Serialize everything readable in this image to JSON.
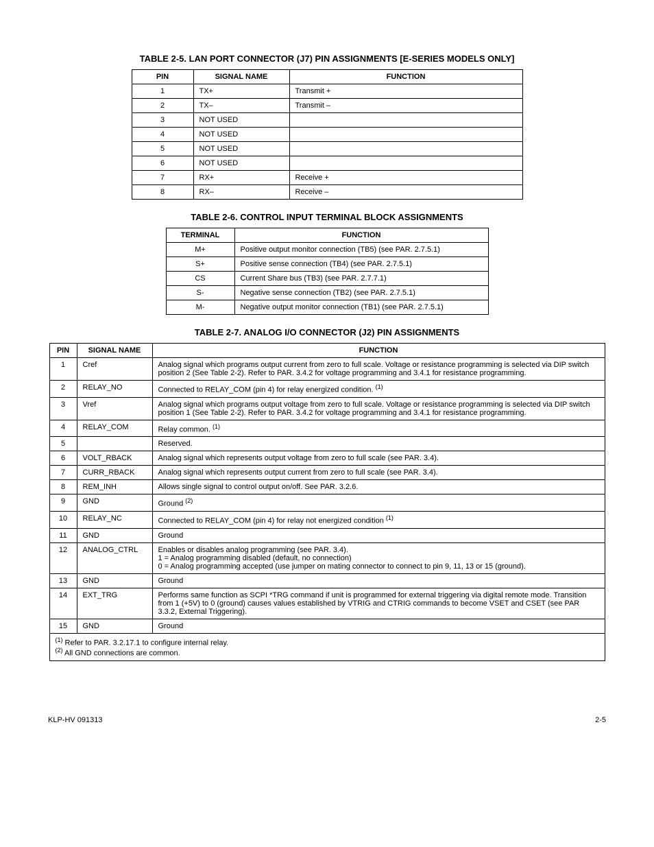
{
  "table25": {
    "title": "TABLE 2-5.  LAN PORT CONNECTOR (J7) PIN ASSIGNMENTS [E-SERIES MODELS ONLY]",
    "headers": {
      "pin": "PIN",
      "signal": "SIGNAL NAME",
      "function": "FUNCTION"
    },
    "rows": [
      {
        "pin": "1",
        "signal": "TX+",
        "function": "Transmit +"
      },
      {
        "pin": "2",
        "signal": "TX–",
        "function": "Transmit –"
      },
      {
        "pin": "3",
        "signal": "NOT USED",
        "function": ""
      },
      {
        "pin": "4",
        "signal": "NOT USED",
        "function": ""
      },
      {
        "pin": "5",
        "signal": "NOT USED",
        "function": ""
      },
      {
        "pin": "6",
        "signal": "NOT USED",
        "function": ""
      },
      {
        "pin": "7",
        "signal": "RX+",
        "function": "Receive +"
      },
      {
        "pin": "8",
        "signal": "RX–",
        "function": "Receive –"
      }
    ]
  },
  "table26": {
    "title": "TABLE 2-6.  CONTROL INPUT TERMINAL BLOCK ASSIGNMENTS",
    "headers": {
      "terminal": "TERMINAL",
      "function": "FUNCTION"
    },
    "rows": [
      {
        "terminal": "M+",
        "function": "Positive output monitor connection (TB5) (see PAR. 2.7.5.1)"
      },
      {
        "terminal": "S+",
        "function": "Positive sense connection (TB4) (see PAR. 2.7.5.1)"
      },
      {
        "terminal": "CS",
        "function": "Current Share bus (TB3) (see PAR. 2.7.7.1)"
      },
      {
        "terminal": "S-",
        "function": "Negative sense connection (TB2) (see PAR. 2.7.5.1)"
      },
      {
        "terminal": "M-",
        "function": "Negative output monitor connection (TB1) (see PAR. 2.7.5.1)"
      }
    ]
  },
  "table27": {
    "title": "TABLE 2-7.  ANALOG I/O CONNECTOR (J2) PIN ASSIGNMENTS",
    "headers": {
      "pin": "PIN",
      "signal": "SIGNAL NAME",
      "function": "FUNCTION"
    },
    "rows": [
      {
        "pin": "1",
        "signal": "Cref",
        "function": "Analog signal which programs output current from zero to full scale. Voltage or resistance programming is selected via DIP switch position 2 (See Table 2-2). Refer to PAR. 3.4.2 for voltage programming and 3.4.1 for resistance programming.",
        "sup": ""
      },
      {
        "pin": "2",
        "signal": "RELAY_NO",
        "function": "Connected to RELAY_COM (pin 4) for relay energized condition.",
        "sup": "(1)"
      },
      {
        "pin": "3",
        "signal": "Vref",
        "function": "Analog signal which programs output voltage from zero to full scale. Voltage or resistance programming is selected via DIP switch position 1 (See Table 2-2). Refer to PAR. 3.4.2 for voltage programming and 3.4.1 for resistance programming.",
        "sup": ""
      },
      {
        "pin": "4",
        "signal": "RELAY_COM",
        "function": "Relay common.",
        "sup": "(1)"
      },
      {
        "pin": "5",
        "signal": "",
        "function": "Reserved.",
        "sup": ""
      },
      {
        "pin": "6",
        "signal": "VOLT_RBACK",
        "function": "Analog signal which represents output voltage from zero to full scale (see PAR. 3.4).",
        "sup": ""
      },
      {
        "pin": "7",
        "signal": "CURR_RBACK",
        "function": "Analog signal which represents output current from zero to full scale (see PAR. 3.4).",
        "sup": ""
      },
      {
        "pin": "8",
        "signal": "REM_INH",
        "function": "Allows single signal to control output on/off. See PAR. 3.2.6.",
        "sup": ""
      },
      {
        "pin": "9",
        "signal": "GND",
        "function": "Ground",
        "sup": "(2)"
      },
      {
        "pin": "10",
        "signal": "RELAY_NC",
        "function": "Connected to RELAY_COM (pin 4) for relay not energized condition",
        "sup": "(1)"
      },
      {
        "pin": "11",
        "signal": "GND",
        "function": "Ground",
        "sup": ""
      },
      {
        "pin": "12",
        "signal": "ANALOG_CTRL",
        "function": "Enables or disables analog programming (see PAR. 3.4).\n1 = Analog programming disabled (default, no connection)\n0 = Analog programming accepted (use jumper on mating connector to connect to pin 9, 11, 13 or 15 (ground).",
        "sup": ""
      },
      {
        "pin": "13",
        "signal": "GND",
        "function": "Ground",
        "sup": ""
      },
      {
        "pin": "14",
        "signal": "EXT_TRG",
        "function": "Performs same function as SCPI *TRG command if unit is programmed for external triggering via digital remote mode. Transition from 1 (+5V) to 0 (ground) causes values established by VTRIG and CTRIG commands to become VSET and CSET (see PAR 3.3.2, External Triggering).",
        "sup": ""
      },
      {
        "pin": "15",
        "signal": "GND",
        "function": "Ground",
        "sup": ""
      }
    ],
    "footnote1_sup": "(1)",
    "footnote1": " Refer to PAR. 3.2.17.1 to configure internal relay.",
    "footnote2_sup": "(2)",
    "footnote2": " All GND connections are common."
  },
  "footer": {
    "left": "KLP-HV 091313",
    "right": "2-5"
  }
}
